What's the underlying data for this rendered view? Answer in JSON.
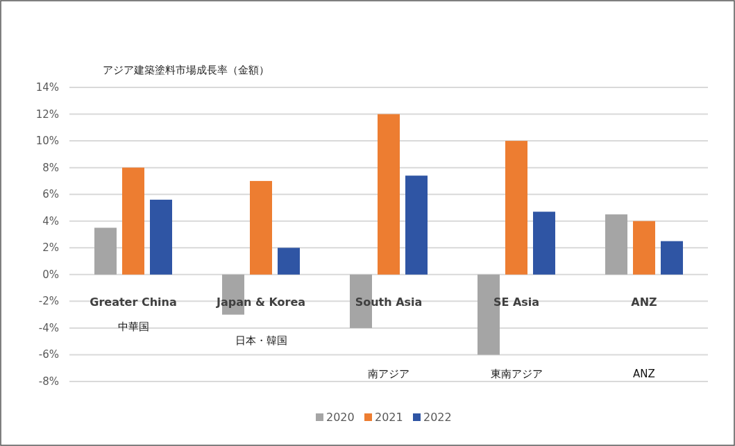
{
  "chart_data": {
    "type": "bar",
    "title": "アジア建築塗料市場成長率（金額）",
    "categories": [
      "Greater China",
      "Japan & Korea",
      "South Asia",
      "SE Asia",
      "ANZ"
    ],
    "series": [
      {
        "name": "2020",
        "color": "#a5a5a5",
        "values": [
          3.5,
          -3,
          -4,
          -6,
          4.5
        ]
      },
      {
        "name": "2021",
        "color": "#ed7d31",
        "values": [
          8,
          7,
          12,
          10,
          4
        ]
      },
      {
        "name": "2022",
        "color": "#2f55a4",
        "values": [
          5.6,
          2,
          7.4,
          4.7,
          2.5
        ]
      }
    ],
    "ylim": [
      -8,
      14
    ],
    "yticks": [
      {
        "value": -8,
        "label": "-8%"
      },
      {
        "value": -6,
        "label": "-6%"
      },
      {
        "value": -4,
        "label": "-4%"
      },
      {
        "value": -2,
        "label": "-2%"
      },
      {
        "value": 0,
        "label": "0%"
      },
      {
        "value": 2,
        "label": "2%"
      },
      {
        "value": 4,
        "label": "4%"
      },
      {
        "value": 6,
        "label": "6%"
      },
      {
        "value": 8,
        "label": "8%"
      },
      {
        "value": 10,
        "label": "10%"
      },
      {
        "value": 12,
        "label": "12%"
      },
      {
        "value": 14,
        "label": "14%"
      }
    ],
    "grid": "y",
    "legend": "bottom",
    "annotations": [
      "中華国",
      "日本・韓国",
      "南アジア",
      "東南アジア",
      "ANZ"
    ]
  }
}
